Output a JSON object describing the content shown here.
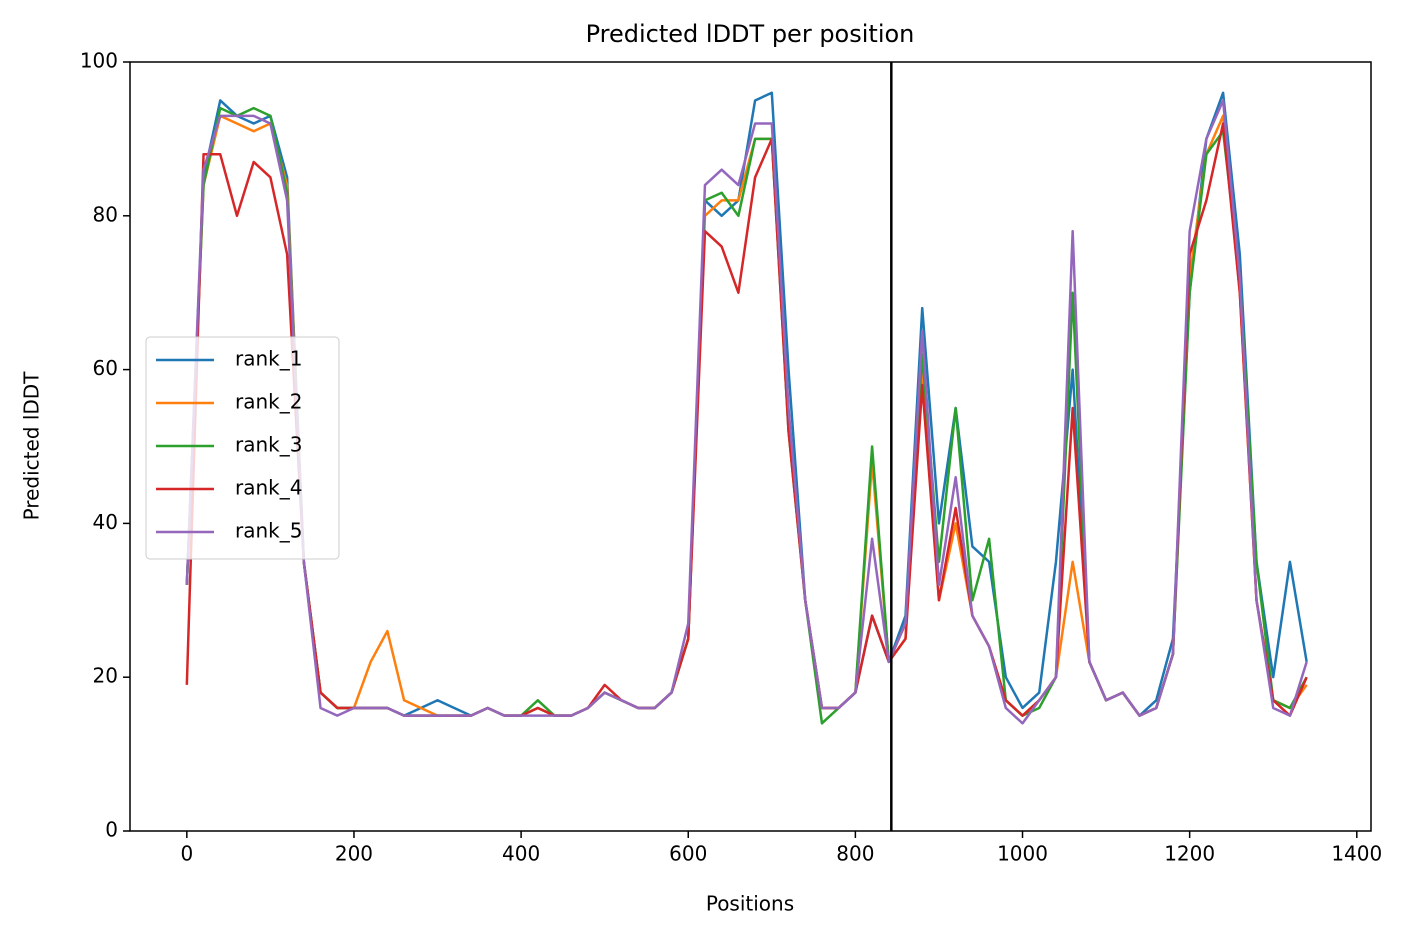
{
  "chart_data": {
    "type": "line",
    "title": "Predicted lDDT per position",
    "xlabel": "Positions",
    "ylabel": "Predicted lDDT",
    "x": [
      0,
      20,
      40,
      60,
      80,
      100,
      120,
      140,
      160,
      180,
      200,
      220,
      240,
      260,
      280,
      300,
      320,
      340,
      360,
      380,
      400,
      420,
      440,
      460,
      480,
      500,
      520,
      540,
      560,
      580,
      600,
      620,
      640,
      660,
      680,
      700,
      720,
      740,
      760,
      780,
      800,
      820,
      840,
      860,
      880,
      900,
      920,
      940,
      960,
      980,
      1000,
      1020,
      1040,
      1060,
      1080,
      1100,
      1120,
      1140,
      1160,
      1180,
      1200,
      1220,
      1240,
      1260,
      1280,
      1300,
      1320,
      1340
    ],
    "series": [
      {
        "name": "rank_1",
        "color": "#1f77b4",
        "values": [
          32,
          85,
          95,
          93,
          92,
          93,
          85,
          35,
          18,
          16,
          16,
          16,
          16,
          15,
          16,
          17,
          16,
          15,
          16,
          15,
          15,
          16,
          15,
          15,
          16,
          18,
          17,
          16,
          16,
          18,
          25,
          82,
          80,
          82,
          95,
          96,
          60,
          30,
          16,
          16,
          18,
          28,
          22,
          28,
          68,
          40,
          55,
          37,
          35,
          20,
          16,
          18,
          35,
          60,
          22,
          17,
          18,
          15,
          17,
          25,
          70,
          90,
          96,
          75,
          35,
          20,
          35,
          22
        ]
      },
      {
        "name": "rank_2",
        "color": "#ff7f0e",
        "values": [
          32,
          84,
          93,
          92,
          91,
          92,
          84,
          35,
          18,
          16,
          16,
          22,
          26,
          17,
          16,
          15,
          15,
          15,
          16,
          15,
          15,
          16,
          15,
          15,
          16,
          18,
          17,
          16,
          16,
          18,
          25,
          80,
          82,
          82,
          90,
          90,
          54,
          30,
          16,
          16,
          18,
          48,
          22,
          25,
          60,
          30,
          40,
          28,
          24,
          17,
          15,
          17,
          20,
          35,
          22,
          17,
          18,
          15,
          16,
          23,
          72,
          88,
          93,
          70,
          30,
          17,
          16,
          19
        ]
      },
      {
        "name": "rank_3",
        "color": "#2ca02c",
        "values": [
          32,
          84,
          94,
          93,
          94,
          93,
          83,
          35,
          18,
          16,
          16,
          16,
          16,
          15,
          15,
          15,
          15,
          15,
          16,
          15,
          15,
          17,
          15,
          15,
          16,
          18,
          17,
          16,
          16,
          18,
          25,
          82,
          83,
          80,
          90,
          90,
          52,
          30,
          14,
          16,
          18,
          50,
          22,
          27,
          62,
          35,
          55,
          30,
          38,
          17,
          15,
          16,
          20,
          70,
          22,
          17,
          18,
          15,
          16,
          23,
          70,
          88,
          91,
          72,
          35,
          17,
          16,
          20
        ]
      },
      {
        "name": "rank_4",
        "color": "#d62728",
        "values": [
          19,
          88,
          88,
          80,
          87,
          85,
          75,
          35,
          18,
          16,
          16,
          16,
          16,
          15,
          15,
          15,
          15,
          15,
          16,
          15,
          15,
          16,
          15,
          15,
          16,
          19,
          17,
          16,
          16,
          18,
          25,
          78,
          76,
          70,
          85,
          90,
          52,
          30,
          16,
          16,
          18,
          28,
          22,
          25,
          58,
          30,
          42,
          28,
          24,
          17,
          15,
          17,
          20,
          55,
          22,
          17,
          18,
          15,
          16,
          23,
          75,
          82,
          92,
          70,
          30,
          17,
          15,
          20
        ]
      },
      {
        "name": "rank_5",
        "color": "#9467bd",
        "values": [
          32,
          86,
          93,
          93,
          93,
          92,
          82,
          35,
          16,
          15,
          16,
          16,
          16,
          15,
          15,
          15,
          15,
          15,
          16,
          15,
          15,
          15,
          15,
          15,
          16,
          18,
          17,
          16,
          16,
          18,
          27,
          84,
          86,
          84,
          92,
          92,
          55,
          30,
          16,
          16,
          18,
          38,
          22,
          27,
          65,
          32,
          46,
          28,
          24,
          16,
          14,
          17,
          20,
          78,
          22,
          17,
          18,
          15,
          16,
          23,
          78,
          90,
          95,
          72,
          30,
          16,
          15,
          22
        ]
      }
    ],
    "vline": 843,
    "xlim": [
      -68,
      1417
    ],
    "xticks": [
      0,
      200,
      400,
      600,
      800,
      1000,
      1200,
      1400
    ],
    "ylim": [
      0,
      100
    ],
    "yticks": [
      0,
      20,
      40,
      60,
      80,
      100
    ],
    "legend": "center left"
  }
}
